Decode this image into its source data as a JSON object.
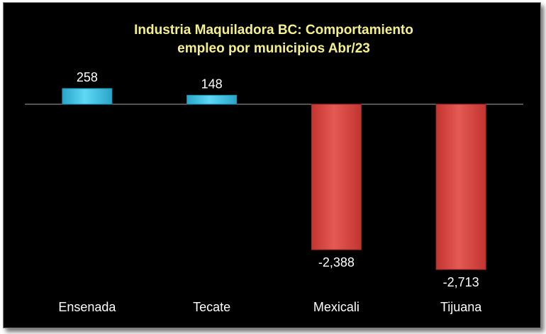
{
  "chart_data": {
    "type": "bar",
    "title_lines": [
      "Industria Maquiladora BC: Comportamiento",
      "empleo por municipios Abr/23"
    ],
    "categories": [
      "Ensenada",
      "Tecate",
      "Mexicali",
      "Tijuana"
    ],
    "values": [
      258,
      148,
      -2388,
      -2713
    ],
    "value_labels": [
      "258",
      "148",
      "-2,388",
      "-2,713"
    ],
    "ylim": [
      -2713,
      258
    ],
    "grid": false,
    "legend": "none",
    "colors": {
      "positive": "#3cc2e6",
      "positive_edge": "#1a8fb0",
      "negative": "#d9403b",
      "negative_edge": "#a82a26",
      "title": "#f5f08a",
      "text": "#ffffff",
      "background": "#000000",
      "axis": "#a6a6a6"
    }
  }
}
